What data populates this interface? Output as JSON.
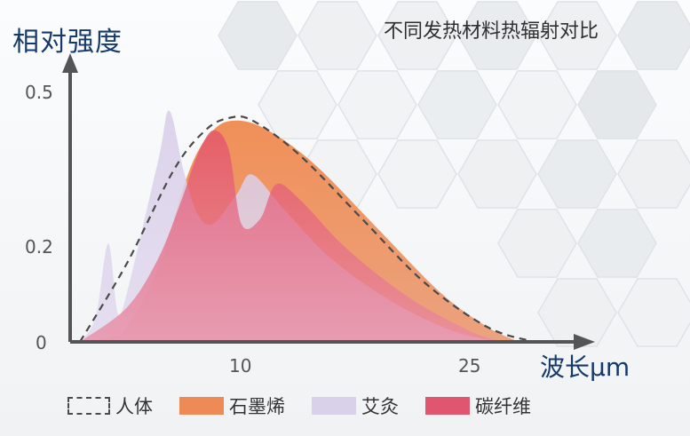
{
  "chart_data": {
    "type": "area",
    "title": "不同发热材料热辐射对比",
    "ylabel": "相对强度",
    "xlabel": "波长μm",
    "x_ticks": [
      "10",
      "25"
    ],
    "y_ticks": [
      "0",
      "0.2",
      "0.5"
    ],
    "ylim": [
      0,
      0.5
    ],
    "xlim": [
      0,
      33
    ],
    "grid": false,
    "legend_position": "bottom",
    "series": [
      {
        "name": "人体",
        "style": "dashed-line",
        "color": "#4a4a4a",
        "points": [
          [
            0,
            0
          ],
          [
            3,
            0.16
          ],
          [
            6,
            0.35
          ],
          [
            8,
            0.43
          ],
          [
            9.5,
            0.455
          ],
          [
            11,
            0.45
          ],
          [
            14,
            0.38
          ],
          [
            18,
            0.25
          ],
          [
            22,
            0.12
          ],
          [
            26,
            0.03
          ],
          [
            29,
            0.0
          ]
        ]
      },
      {
        "name": "石墨烯",
        "style": "area",
        "color": "#ee8a55",
        "points": [
          [
            0,
            0
          ],
          [
            2,
            0.01
          ],
          [
            3,
            0.03
          ],
          [
            5,
            0.15
          ],
          [
            7,
            0.35
          ],
          [
            8.5,
            0.43
          ],
          [
            10,
            0.45
          ],
          [
            12,
            0.43
          ],
          [
            15,
            0.36
          ],
          [
            19,
            0.23
          ],
          [
            23,
            0.1
          ],
          [
            26,
            0.03
          ],
          [
            28,
            0.0
          ]
        ]
      },
      {
        "name": "艾灸",
        "style": "area",
        "color": "#d9d0ea",
        "points": [
          [
            0,
            0
          ],
          [
            1,
            0.05
          ],
          [
            1.8,
            0.2
          ],
          [
            2.4,
            0.06
          ],
          [
            3,
            0.1
          ],
          [
            5,
            0.37
          ],
          [
            5.7,
            0.47
          ],
          [
            6.6,
            0.35
          ],
          [
            7.5,
            0.26
          ],
          [
            8.5,
            0.24
          ],
          [
            10,
            0.3
          ],
          [
            11,
            0.34
          ],
          [
            13,
            0.27
          ],
          [
            16,
            0.17
          ],
          [
            20,
            0.08
          ],
          [
            24,
            0.02
          ],
          [
            27,
            0.0
          ]
        ]
      },
      {
        "name": "碳纤维",
        "style": "area",
        "color": "#e0566f",
        "points": [
          [
            0,
            0
          ],
          [
            3,
            0.07
          ],
          [
            5,
            0.17
          ],
          [
            6.5,
            0.29
          ],
          [
            7.5,
            0.38
          ],
          [
            8.5,
            0.43
          ],
          [
            9.5,
            0.39
          ],
          [
            10.3,
            0.24
          ],
          [
            11.5,
            0.25
          ],
          [
            12.5,
            0.32
          ],
          [
            14,
            0.29
          ],
          [
            17,
            0.19
          ],
          [
            21,
            0.09
          ],
          [
            25,
            0.02
          ],
          [
            27,
            0.0
          ]
        ]
      }
    ]
  }
}
